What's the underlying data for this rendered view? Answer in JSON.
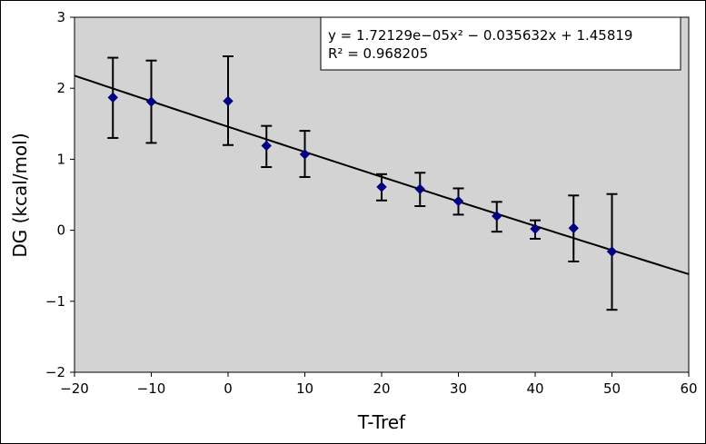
{
  "chart_data": {
    "type": "scatter",
    "title": "",
    "xlabel": "T-Tref",
    "ylabel": "DG (kcal/mol)",
    "xlim": [
      -20,
      60
    ],
    "ylim": [
      -2,
      3
    ],
    "xticks": [
      -20,
      -10,
      0,
      10,
      20,
      30,
      40,
      50,
      60
    ],
    "yticks": [
      -2,
      -1,
      0,
      1,
      2,
      3
    ],
    "xtick_labels": [
      "−20",
      "−10",
      "0",
      "10",
      "20",
      "30",
      "40",
      "50",
      "60"
    ],
    "ytick_labels": [
      "−2",
      "−1",
      "0",
      "1",
      "2",
      "3"
    ],
    "grid": false,
    "plot_background": "#d3d3d3",
    "marker_color": "#000080",
    "fit_line_color": "#000000",
    "series": [
      {
        "x": [
          -15,
          -10,
          0,
          5,
          10,
          20,
          25,
          30,
          35,
          40,
          45,
          50
        ],
        "y": [
          1.87,
          1.81,
          1.82,
          1.19,
          1.07,
          0.61,
          0.58,
          0.41,
          0.2,
          0.02,
          0.03,
          -0.3
        ],
        "err_low": [
          1.3,
          1.23,
          1.2,
          0.89,
          0.75,
          0.42,
          0.34,
          0.22,
          -0.02,
          -0.12,
          -0.44,
          -1.12
        ],
        "err_high": [
          2.43,
          2.39,
          2.45,
          1.47,
          1.4,
          0.79,
          0.81,
          0.59,
          0.4,
          0.14,
          0.49,
          0.51
        ]
      }
    ],
    "trendline": {
      "type": "polynomial",
      "coefficients": [
        1.72129e-05,
        -0.035632,
        1.45819
      ],
      "x_range": [
        -20,
        60
      ]
    },
    "annotation": {
      "equation": "y = 1.72129e−05x² − 0.035632x + 1.45819",
      "r_squared": "R² = 0.968205",
      "position": "top-right"
    }
  }
}
